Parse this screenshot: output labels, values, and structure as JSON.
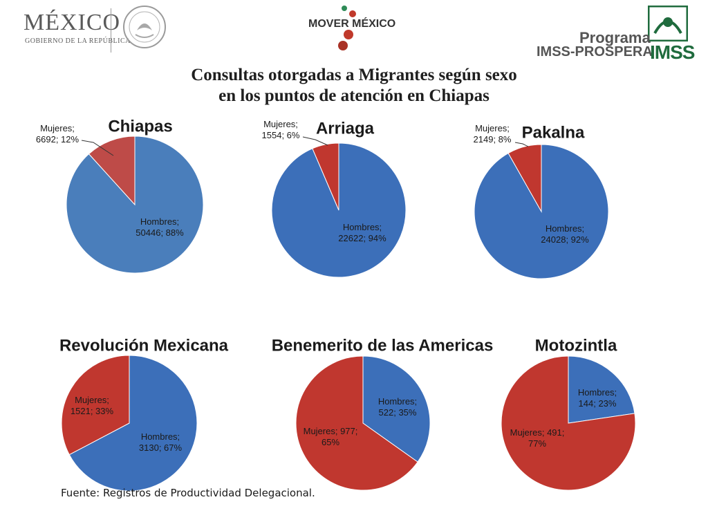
{
  "header": {
    "left_logo_title": "MÉXICO",
    "left_logo_subtitle": "GOBIERNO DE LA REPÚBLICA",
    "seal_text": "ESTADOS UNIDOS MEXICANOS",
    "center_logo": "MOVER MÉXICO",
    "right_logo_line1": "Programa",
    "right_logo_line2": "IMSS-PROSPERA",
    "right_logo_brand": "IMSS"
  },
  "title": {
    "line1": "Consultas otorgadas a Migrantes según sexo",
    "line2": "en  los puntos de atención en Chiapas"
  },
  "source": "Fuente: Registros de Productividad Delegacional.",
  "colors": {
    "hombres": "#4a7ebb",
    "mujeres": "#be4b48",
    "hombres_shaded": "#3c6fb9",
    "mujeres_shaded": "#c0372f"
  },
  "chart_data": [
    {
      "type": "pie",
      "title": "Chiapas",
      "slices": [
        {
          "name": "Hombres",
          "value": 50446,
          "percent": 88,
          "label_lines": [
            "Hombres;",
            "50446; 88%"
          ]
        },
        {
          "name": "Mujeres",
          "value": 6692,
          "percent": 12,
          "label_lines": [
            "Mujeres;",
            "6692; 12%"
          ]
        }
      ]
    },
    {
      "type": "pie",
      "title": "Arriaga",
      "slices": [
        {
          "name": "Hombres",
          "value": 22622,
          "percent": 94,
          "label_lines": [
            "Hombres;",
            "22622; 94%"
          ]
        },
        {
          "name": "Mujeres",
          "value": 1554,
          "percent": 6,
          "label_lines": [
            "Mujeres;",
            "1554; 6%"
          ]
        }
      ]
    },
    {
      "type": "pie",
      "title": "Pakalna",
      "slices": [
        {
          "name": "Hombres",
          "value": 24028,
          "percent": 92,
          "label_lines": [
            "Hombres;",
            "24028; 92%"
          ]
        },
        {
          "name": "Mujeres",
          "value": 2149,
          "percent": 8,
          "label_lines": [
            "Mujeres;",
            "2149; 8%"
          ]
        }
      ]
    },
    {
      "type": "pie",
      "title": "Revolución Mexicana",
      "slices": [
        {
          "name": "Hombres",
          "value": 3130,
          "percent": 67,
          "label_lines": [
            "Hombres;",
            "3130; 67%"
          ]
        },
        {
          "name": "Mujeres",
          "value": 1521,
          "percent": 33,
          "label_lines": [
            "Mujeres;",
            "1521; 33%"
          ]
        }
      ]
    },
    {
      "type": "pie",
      "title": "Benemerito de las Americas",
      "slices": [
        {
          "name": "Hombres",
          "value": 522,
          "percent": 35,
          "label_lines": [
            "Hombres;",
            "522; 35%"
          ]
        },
        {
          "name": "Mujeres",
          "value": 977,
          "percent": 65,
          "label_lines": [
            "Mujeres; 977;",
            "65%"
          ]
        }
      ]
    },
    {
      "type": "pie",
      "title": "Motozintla",
      "slices": [
        {
          "name": "Hombres",
          "value": 144,
          "percent": 23,
          "label_lines": [
            "Hombres;",
            "144; 23%"
          ]
        },
        {
          "name": "Mujeres",
          "value": 491,
          "percent": 77,
          "label_lines": [
            "Mujeres; 491;",
            "77%"
          ]
        }
      ]
    }
  ]
}
